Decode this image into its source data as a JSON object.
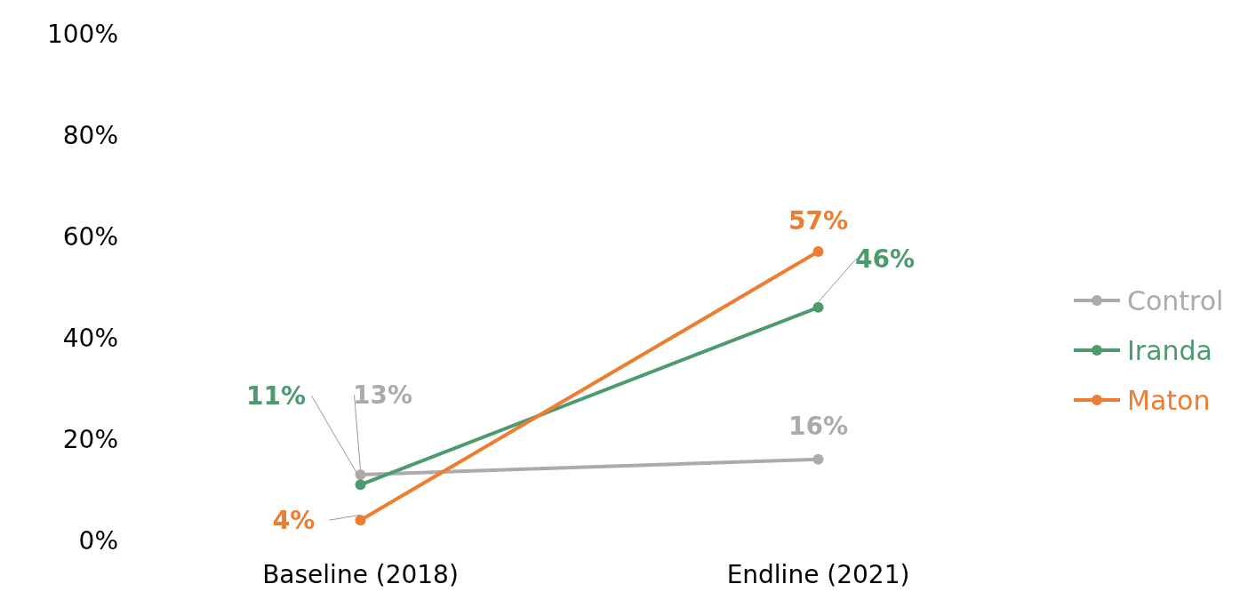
{
  "chart_data": {
    "type": "line",
    "categories": [
      "Baseline (2018)",
      "Endline (2021)"
    ],
    "series": [
      {
        "name": "Control",
        "color": "#aeaaaa",
        "values": [
          13,
          16
        ],
        "value_labels": [
          "13%",
          "16%"
        ]
      },
      {
        "name": "Iranda",
        "color": "#4e9a6f",
        "values": [
          11,
          46
        ],
        "value_labels": [
          "11%",
          "46%"
        ]
      },
      {
        "name": "Maton",
        "color": "#ed7d31",
        "values": [
          4,
          57
        ],
        "value_labels": [
          "4%",
          "57%"
        ]
      }
    ],
    "ylim": [
      0,
      100
    ],
    "yticks": [
      {
        "value": 0,
        "label": "0%"
      },
      {
        "value": 20,
        "label": "20%"
      },
      {
        "value": 40,
        "label": "40%"
      },
      {
        "value": 60,
        "label": "60%"
      },
      {
        "value": 80,
        "label": "80%"
      },
      {
        "value": 100,
        "label": "100%"
      }
    ],
    "legend": "right",
    "marker": "circle",
    "line_style": "solid"
  }
}
